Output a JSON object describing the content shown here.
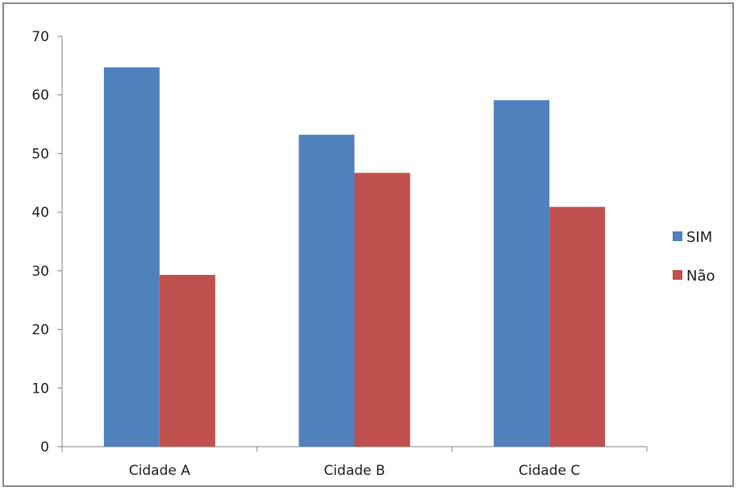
{
  "chart_data": {
    "type": "bar",
    "title": "",
    "xlabel": "",
    "ylabel": "",
    "categories": [
      "Cidade A",
      "Cidade B",
      "Cidade C"
    ],
    "series": [
      {
        "name": "SIM",
        "values": [
          64.7,
          53.2,
          59.1
        ],
        "color": "#4f81bd"
      },
      {
        "name": "Não",
        "values": [
          29.3,
          46.7,
          40.9
        ],
        "color": "#c0504d"
      }
    ],
    "ylim": [
      0,
      70
    ],
    "yticks": [
      0,
      10,
      20,
      30,
      40,
      50,
      60,
      70
    ],
    "grid": false,
    "legend": "right"
  }
}
